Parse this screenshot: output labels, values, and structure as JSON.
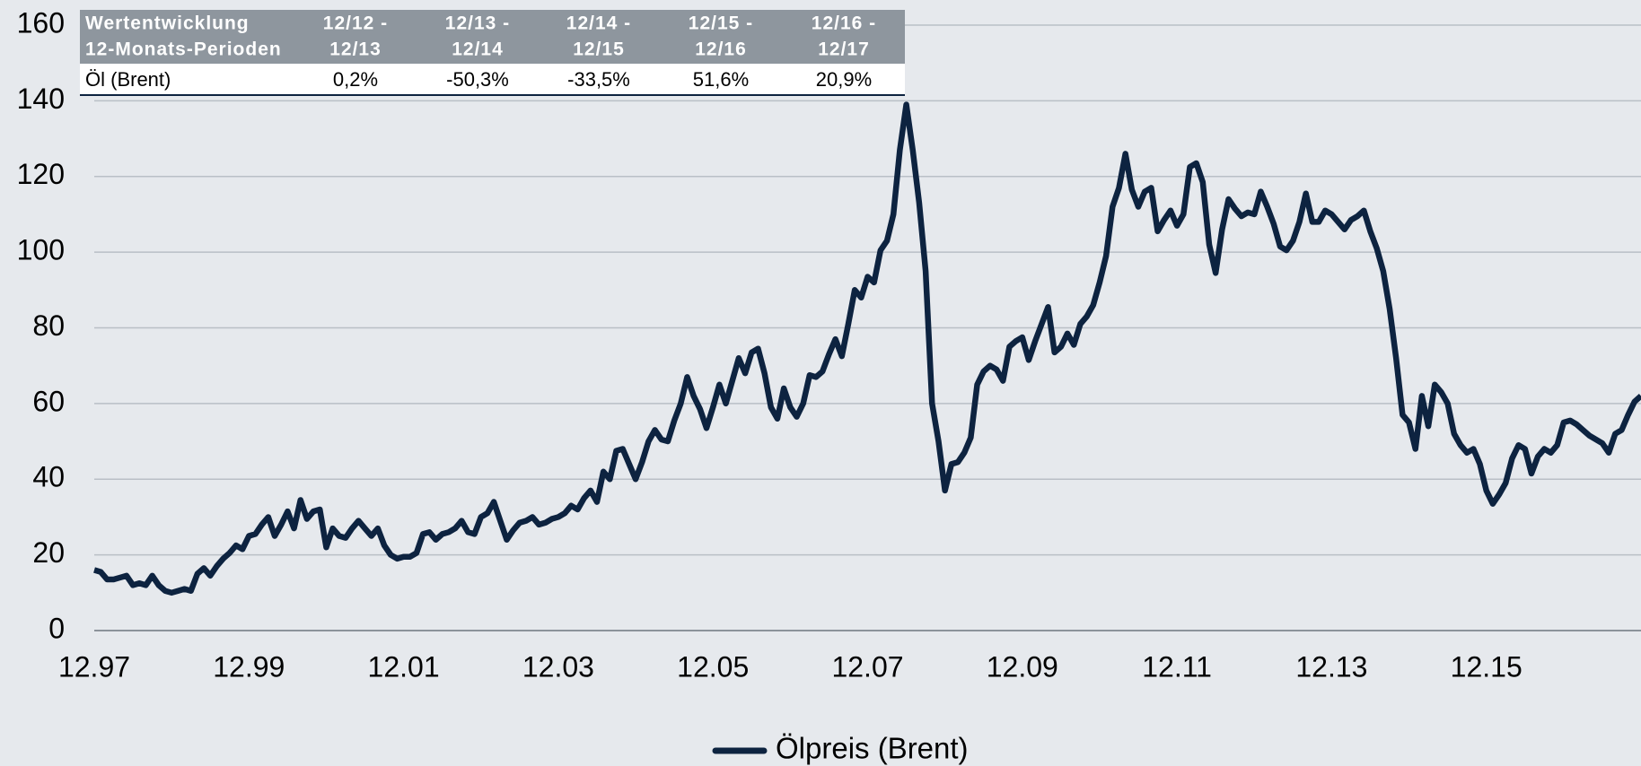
{
  "chart_data": {
    "type": "line",
    "categories": [
      "12.97",
      null,
      null,
      null,
      null,
      null,
      null,
      null,
      null,
      null,
      null,
      null,
      null,
      null,
      null,
      null,
      null,
      null,
      null,
      null,
      null,
      null,
      null,
      null,
      "12.99",
      null,
      null,
      null,
      null,
      null,
      null,
      null,
      null,
      null,
      null,
      null,
      null,
      null,
      null,
      null,
      null,
      null,
      null,
      null,
      null,
      null,
      null,
      null,
      "12.01",
      null,
      null,
      null,
      null,
      null,
      null,
      null,
      null,
      null,
      null,
      null,
      null,
      null,
      null,
      null,
      null,
      null,
      null,
      null,
      null,
      null,
      null,
      null,
      "12.03",
      null,
      null,
      null,
      null,
      null,
      null,
      null,
      null,
      null,
      null,
      null,
      null,
      null,
      null,
      null,
      null,
      null,
      null,
      null,
      null,
      null,
      null,
      null,
      "12.05",
      null,
      null,
      null,
      null,
      null,
      null,
      null,
      null,
      null,
      null,
      null,
      null,
      null,
      null,
      null,
      null,
      null,
      null,
      null,
      null,
      null,
      null,
      null,
      "12.07",
      null,
      null,
      null,
      null,
      null,
      null,
      null,
      null,
      null,
      null,
      null,
      null,
      null,
      null,
      null,
      null,
      null,
      null,
      null,
      null,
      null,
      null,
      null,
      "12.09",
      null,
      null,
      null,
      null,
      null,
      null,
      null,
      null,
      null,
      null,
      null,
      null,
      null,
      null,
      null,
      null,
      null,
      null,
      null,
      null,
      null,
      null,
      null,
      "12.11",
      null,
      null,
      null,
      null,
      null,
      null,
      null,
      null,
      null,
      null,
      null,
      null,
      null,
      null,
      null,
      null,
      null,
      null,
      null,
      null,
      null,
      null,
      null,
      "12.13",
      null,
      null,
      null,
      null,
      null,
      null,
      null,
      null,
      null,
      null,
      null,
      null,
      null,
      null,
      null,
      null,
      null,
      null,
      null,
      null,
      null,
      null,
      null,
      "12.15",
      null,
      null,
      null,
      null,
      null,
      null,
      null,
      null,
      null,
      null,
      null,
      null,
      null,
      null,
      null,
      null,
      null,
      null,
      null,
      null,
      null,
      null,
      null,
      null
    ],
    "series": [
      {
        "name": "Ölpreis (Brent)",
        "color": "#0d2340",
        "values": [
          16,
          15.5,
          13.5,
          13.5,
          14,
          14.5,
          12,
          12.5,
          12,
          14.5,
          12,
          10.5,
          10,
          10.5,
          11,
          10.5,
          15,
          16.5,
          14.5,
          17,
          19,
          20.5,
          22.5,
          21.5,
          25,
          25.5,
          28,
          30,
          25,
          28,
          31.5,
          27,
          34.5,
          29.5,
          31.5,
          32,
          22,
          27,
          25,
          24.5,
          27,
          29,
          27,
          25,
          27,
          22.5,
          20,
          19,
          19.5,
          19.5,
          20.5,
          25.5,
          26,
          24,
          25.5,
          26,
          27,
          29,
          26,
          25.5,
          30,
          31,
          34,
          29,
          24,
          26.5,
          28.5,
          29,
          30,
          28,
          28.5,
          29.5,
          30,
          31,
          33,
          32,
          35,
          37,
          34,
          42,
          40,
          47.5,
          48,
          44,
          40,
          44.5,
          50,
          53,
          50.5,
          50,
          55.5,
          60,
          67,
          62,
          58.5,
          53.5,
          59,
          65,
          60,
          66,
          72,
          68,
          73.5,
          74.5,
          68,
          59,
          56,
          64,
          59,
          56.5,
          60,
          67.5,
          67,
          68.5,
          73,
          77,
          72.5,
          81,
          90,
          88,
          93.5,
          92,
          100.5,
          103,
          110,
          127,
          139,
          127,
          113,
          95,
          60,
          50,
          37,
          44,
          44.5,
          47,
          51,
          65,
          68.5,
          70,
          69,
          66,
          75,
          76.5,
          77.5,
          71.5,
          76.5,
          81,
          85.5,
          73.5,
          75,
          78.5,
          75.5,
          81,
          83,
          86,
          92,
          99,
          112,
          117,
          126,
          116.5,
          112,
          116,
          117,
          105.5,
          108.5,
          111,
          107,
          110,
          122.5,
          123.5,
          118.5,
          102,
          94.5,
          106,
          114,
          111.5,
          109.5,
          110.5,
          110,
          116,
          112,
          107.5,
          101.5,
          100.5,
          103,
          108,
          115.5,
          108,
          108,
          111,
          110,
          108,
          106,
          108.5,
          109.5,
          111,
          105.5,
          101,
          95,
          85,
          72,
          57,
          55,
          48,
          62,
          54,
          65,
          63,
          60,
          52,
          49,
          47,
          48,
          44,
          37,
          33.5,
          36,
          39,
          45.5,
          49,
          48,
          41.5,
          46,
          48,
          47,
          49,
          55,
          55.5,
          54.5,
          53,
          51.5,
          50.5,
          49.5,
          47,
          52,
          53,
          57,
          60.5,
          62
        ]
      }
    ],
    "ylim": [
      0,
      160
    ],
    "yticks": [
      0,
      20,
      40,
      60,
      80,
      100,
      120,
      140,
      160
    ],
    "grid": true,
    "legend": "bottom"
  },
  "table": {
    "header": [
      [
        "Wertentwicklung",
        "12-Monats-Perioden"
      ],
      [
        "12/12 -",
        "12/13"
      ],
      [
        "12/13 -",
        "12/14"
      ],
      [
        "12/14 -",
        "12/15"
      ],
      [
        "12/15 -",
        "12/16"
      ],
      [
        "12/16 -",
        "12/17"
      ]
    ],
    "rows": [
      [
        "Öl (Brent)",
        "0,2%",
        "-50,3%",
        "-33,5%",
        "51,6%",
        "20,9%"
      ]
    ]
  }
}
